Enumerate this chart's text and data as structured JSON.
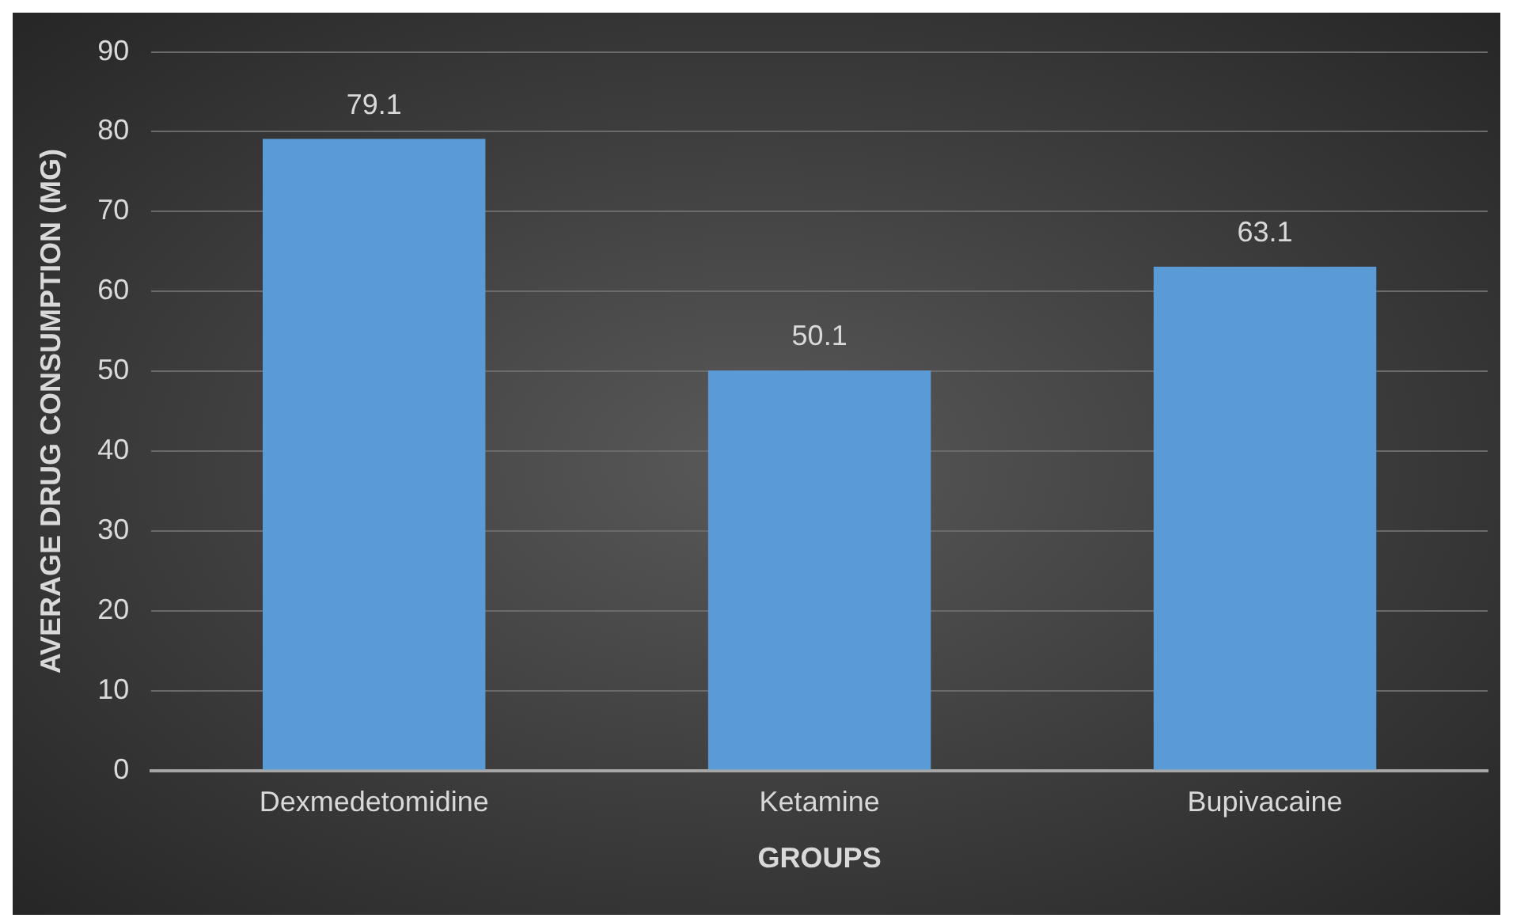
{
  "chart_data": {
    "type": "bar",
    "xlabel": "GROUPS",
    "ylabel": "AVERAGE DRUG CONSUMPTION (MG)",
    "categories": [
      "Dexmedetomidine",
      "Ketamine",
      "Bupivacaine"
    ],
    "values": [
      79.1,
      50.1,
      63.1
    ],
    "color": "#5b9bd5",
    "ylim": [
      0,
      90
    ],
    "yticks": [
      0,
      10,
      20,
      30,
      40,
      50,
      60,
      70,
      80,
      90
    ],
    "grid": "y",
    "data_labels": true,
    "legend": false
  }
}
